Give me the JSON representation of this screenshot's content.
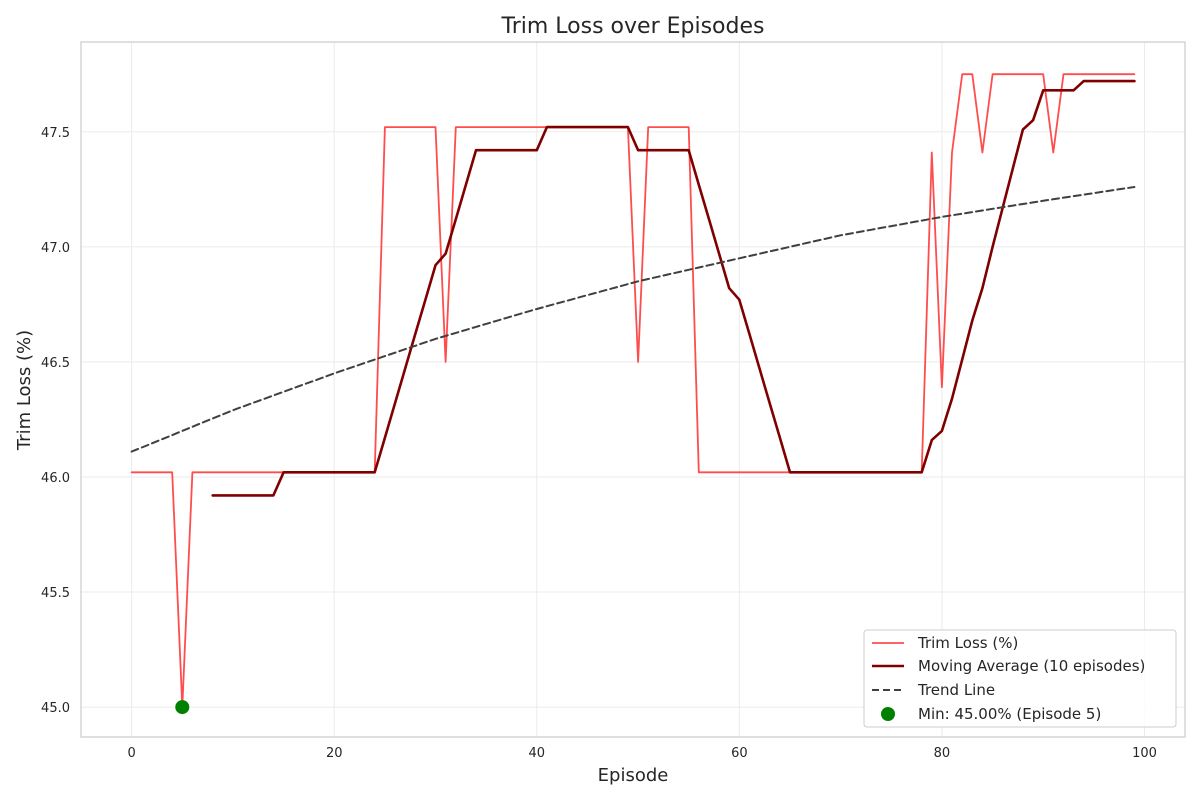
{
  "chart_data": {
    "type": "line",
    "title": "Trim Loss over Episodes",
    "xlabel": "Episode",
    "ylabel": "Trim Loss (%)",
    "xlim": [
      -5,
      104
    ],
    "ylim": [
      44.87,
      47.89
    ],
    "xticks": [
      0,
      20,
      40,
      60,
      80,
      100
    ],
    "yticks": [
      45.0,
      45.5,
      46.0,
      46.5,
      47.0,
      47.5
    ],
    "ytick_format": 1,
    "grid": true,
    "legend_position": "lower-right",
    "series": [
      {
        "name": "Trim Loss (%)",
        "style": "line",
        "color": "#ff4d4d",
        "x": [
          0,
          1,
          2,
          3,
          4,
          5,
          6,
          7,
          8,
          9,
          10,
          11,
          12,
          13,
          14,
          15,
          16,
          17,
          18,
          19,
          20,
          21,
          22,
          23,
          24,
          25,
          26,
          27,
          28,
          29,
          30,
          31,
          32,
          33,
          34,
          35,
          36,
          37,
          38,
          39,
          40,
          41,
          42,
          43,
          44,
          45,
          46,
          47,
          48,
          49,
          50,
          51,
          52,
          53,
          54,
          55,
          56,
          57,
          58,
          59,
          60,
          61,
          62,
          63,
          64,
          65,
          66,
          67,
          68,
          69,
          70,
          71,
          72,
          73,
          74,
          75,
          76,
          77,
          78,
          79,
          80,
          81,
          82,
          83,
          84,
          85,
          86,
          87,
          88,
          89,
          90,
          91,
          92,
          93,
          94,
          95,
          96,
          97,
          98,
          99
        ],
        "values": [
          46.02,
          46.02,
          46.02,
          46.02,
          46.02,
          45.0,
          46.02,
          46.02,
          46.02,
          46.02,
          46.02,
          46.02,
          46.02,
          46.02,
          46.02,
          46.02,
          46.02,
          46.02,
          46.02,
          46.02,
          46.02,
          46.02,
          46.02,
          46.02,
          46.02,
          47.52,
          47.52,
          47.52,
          47.52,
          47.52,
          47.52,
          46.5,
          47.52,
          47.52,
          47.52,
          47.52,
          47.52,
          47.52,
          47.52,
          47.52,
          47.52,
          47.52,
          47.52,
          47.52,
          47.52,
          47.52,
          47.52,
          47.52,
          47.52,
          47.52,
          46.5,
          47.52,
          47.52,
          47.52,
          47.52,
          47.52,
          46.02,
          46.02,
          46.02,
          46.02,
          46.02,
          46.02,
          46.02,
          46.02,
          46.02,
          46.02,
          46.02,
          46.02,
          46.02,
          46.02,
          46.02,
          46.02,
          46.02,
          46.02,
          46.02,
          46.02,
          46.02,
          46.02,
          46.02,
          47.41,
          46.39,
          47.41,
          47.75,
          47.75,
          47.41,
          47.75,
          47.75,
          47.75,
          47.75,
          47.75,
          47.75,
          47.41,
          47.75,
          47.75,
          47.75,
          47.75,
          47.75,
          47.75,
          47.75,
          47.75
        ]
      },
      {
        "name": "Moving Average (10 episodes)",
        "style": "line",
        "color": "#800000",
        "x": [
          8,
          9,
          10,
          11,
          12,
          13,
          14,
          15,
          16,
          17,
          18,
          19,
          20,
          21,
          22,
          23,
          24,
          25,
          26,
          27,
          28,
          29,
          30,
          31,
          32,
          33,
          34,
          35,
          36,
          37,
          38,
          39,
          40,
          41,
          42,
          43,
          44,
          45,
          46,
          47,
          48,
          49,
          50,
          51,
          52,
          53,
          54,
          55,
          56,
          57,
          58,
          59,
          60,
          61,
          62,
          63,
          64,
          65,
          66,
          67,
          68,
          69,
          70,
          71,
          72,
          73,
          74,
          75,
          76,
          77,
          78,
          79,
          80,
          81,
          82,
          83,
          84,
          85,
          86,
          87,
          88,
          89,
          90,
          91,
          92,
          93,
          94,
          95,
          96,
          97,
          98,
          99
        ],
        "values": [
          45.92,
          45.92,
          45.92,
          45.92,
          45.92,
          45.92,
          45.92,
          46.02,
          46.02,
          46.02,
          46.02,
          46.02,
          46.02,
          46.02,
          46.02,
          46.02,
          46.02,
          46.17,
          46.32,
          46.47,
          46.62,
          46.77,
          46.92,
          46.97,
          47.12,
          47.27,
          47.42,
          47.42,
          47.42,
          47.42,
          47.42,
          47.42,
          47.42,
          47.52,
          47.52,
          47.52,
          47.52,
          47.52,
          47.52,
          47.52,
          47.52,
          47.52,
          47.42,
          47.42,
          47.42,
          47.42,
          47.42,
          47.42,
          47.27,
          47.12,
          46.97,
          46.82,
          46.77,
          46.62,
          46.47,
          46.32,
          46.17,
          46.02,
          46.02,
          46.02,
          46.02,
          46.02,
          46.02,
          46.02,
          46.02,
          46.02,
          46.02,
          46.02,
          46.02,
          46.02,
          46.02,
          46.16,
          46.2,
          46.34,
          46.51,
          46.68,
          46.82,
          47.0,
          47.17,
          47.34,
          47.51,
          47.55,
          47.68,
          47.68,
          47.68,
          47.68,
          47.72,
          47.72,
          47.72,
          47.72,
          47.72,
          47.72
        ]
      },
      {
        "name": "Trend Line",
        "style": "dashed",
        "color": "#404040",
        "x": [
          0,
          10,
          20,
          30,
          40,
          50,
          60,
          70,
          80,
          90,
          99
        ],
        "values": [
          46.11,
          46.29,
          46.45,
          46.6,
          46.73,
          46.85,
          46.95,
          47.05,
          47.13,
          47.2,
          47.26
        ]
      }
    ],
    "highlight": {
      "name": "Min: 45.00% (Episode 5)",
      "style": "marker",
      "color": "#008000",
      "x": 5,
      "y": 45.0
    }
  }
}
